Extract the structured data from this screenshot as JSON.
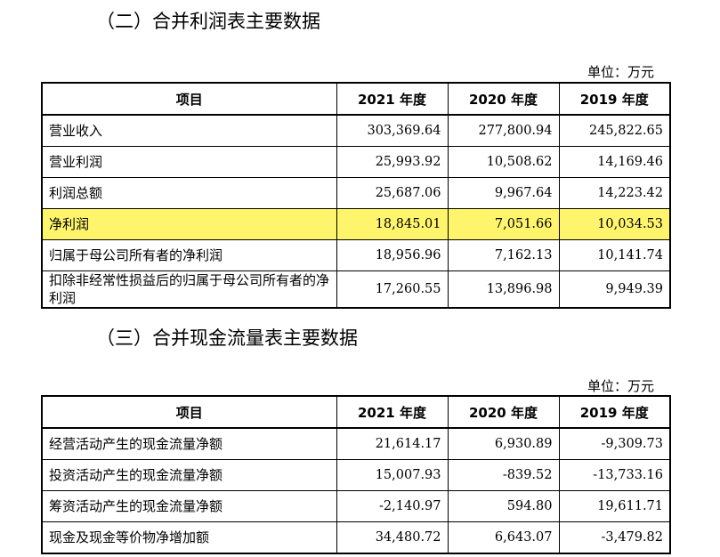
{
  "income": {
    "heading": "（二）合并利润表主要数据",
    "unit": "单位：万元",
    "headers": [
      "项目",
      "2021 年度",
      "2020 年度",
      "2019 年度"
    ],
    "rows": [
      {
        "label": "营业收入",
        "v2021": "303,369.64",
        "v2020": "277,800.94",
        "v2019": "245,822.65"
      },
      {
        "label": "营业利润",
        "v2021": "25,993.92",
        "v2020": "10,508.62",
        "v2019": "14,169.46"
      },
      {
        "label": "利润总额",
        "v2021": "25,687.06",
        "v2020": "9,967.64",
        "v2019": "14,223.42"
      },
      {
        "label": "净利润",
        "v2021": "18,845.01",
        "v2020": "7,051.66",
        "v2019": "10,034.53"
      },
      {
        "label": "归属于母公司所有者的净利润",
        "v2021": "18,956.96",
        "v2020": "7,162.13",
        "v2019": "10,141.74"
      },
      {
        "label": "扣除非经常性损益后的归属于母公司所有者的净利润",
        "v2021": "17,260.55",
        "v2020": "13,896.98",
        "v2019": "9,949.39"
      }
    ]
  },
  "cashflow": {
    "heading": "（三）合并现金流量表主要数据",
    "unit": "单位：万元",
    "headers": [
      "项目",
      "2021 年度",
      "2020 年度",
      "2019 年度"
    ],
    "rows": [
      {
        "label": "经营活动产生的现金流量净额",
        "v2021": "21,614.17",
        "v2020": "6,930.89",
        "v2019": "-9,309.73"
      },
      {
        "label": "投资活动产生的现金流量净额",
        "v2021": "15,007.93",
        "v2020": "-839.52",
        "v2019": "-13,733.16"
      },
      {
        "label": "筹资活动产生的现金流量净额",
        "v2021": "-2,140.97",
        "v2020": "594.80",
        "v2019": "19,611.71"
      },
      {
        "label": "现金及现金等价物净增加额",
        "v2021": "34,480.72",
        "v2020": "6,643.07",
        "v2019": "-3,479.82"
      }
    ]
  },
  "colors": {
    "highlight": "#fff56d"
  }
}
